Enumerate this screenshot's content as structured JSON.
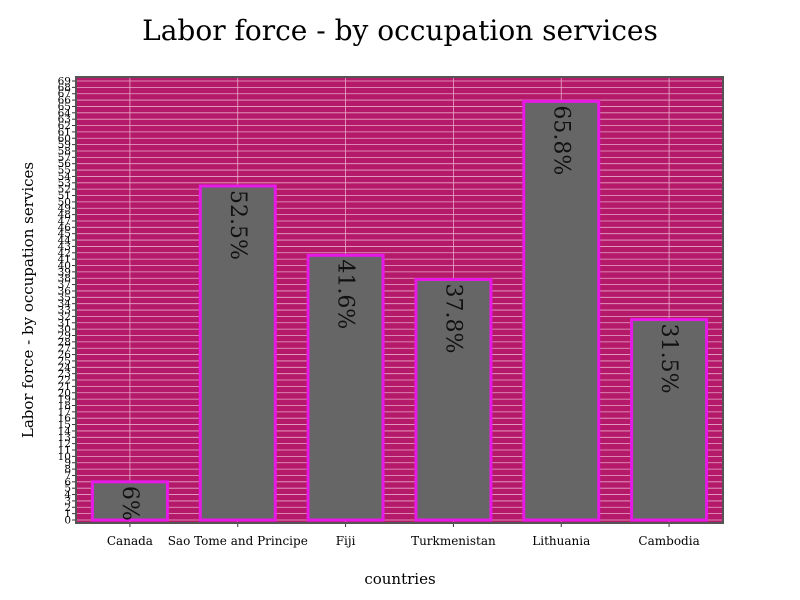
{
  "chart_data": {
    "type": "bar",
    "title": "Labor force - by occupation services",
    "xlabel": "countries",
    "ylabel": "Labor force - by occupation services",
    "categories": [
      "Canada",
      "Sao Tome and Principe",
      "Fiji",
      "Turkmenistan",
      "Lithuania",
      "Cambodia"
    ],
    "values": [
      6,
      52.5,
      41.6,
      37.8,
      65.8,
      31.5
    ],
    "value_labels": [
      "6%",
      "52.5%",
      "41.6%",
      "37.8%",
      "65.8%",
      "31.5%"
    ],
    "ylim": [
      0,
      69
    ],
    "y_ticks": [
      0,
      1,
      2,
      3,
      4,
      5,
      6,
      7,
      8,
      9,
      10,
      11,
      12,
      13,
      14,
      15,
      16,
      17,
      18,
      19,
      20,
      21,
      22,
      23,
      24,
      25,
      26,
      27,
      28,
      29,
      30,
      31,
      32,
      33,
      34,
      35,
      36,
      37,
      38,
      39,
      40,
      41,
      42,
      43,
      44,
      45,
      46,
      47,
      48,
      49,
      50,
      51,
      52,
      53,
      54,
      55,
      56,
      57,
      58,
      59,
      60,
      61,
      62,
      63,
      64,
      65,
      66,
      67,
      68,
      69
    ],
    "grid": true,
    "legend": "none",
    "colors": {
      "plot_background": "#b4196a",
      "bar_fill": "#666666",
      "bar_stroke": "#e619e6",
      "grid": "#e8a9c8",
      "plot_border": "#555555"
    }
  }
}
